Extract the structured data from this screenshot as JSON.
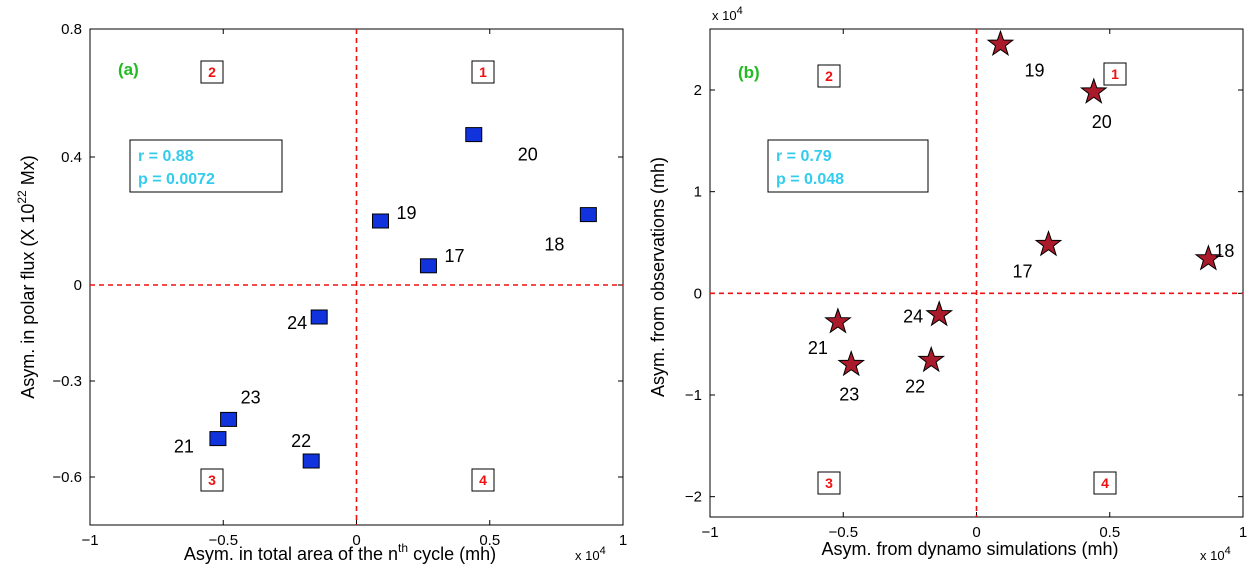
{
  "colors": {
    "tag": "#22bb22",
    "quad": "#ee1111",
    "stat": "#33ccee",
    "zero": "#ee1111",
    "marker_a": "#1133dd",
    "marker_b": "#aa1a2a"
  },
  "chart_data": [
    {
      "type": "scatter",
      "panel_label": "(a)",
      "xlabel": "Asym. in total area of the n",
      "xlabel_sup": "th",
      "xlabel_tail": " cycle (mh)",
      "ylabel": "Asym. in polar flux (X 10",
      "ylabel_sup": "22",
      "ylabel_tail": " Mx)",
      "x_multiplier": "x 10",
      "x_multiplier_exp": "4",
      "xlim": [
        -1,
        1
      ],
      "ylim": [
        -0.75,
        0.8
      ],
      "xticks": [
        -1,
        -0.5,
        0,
        0.5,
        1
      ],
      "xtick_labels": [
        "−1",
        "−0.5",
        "0",
        "0.5",
        "1"
      ],
      "yticks": [
        -0.6,
        -0.3,
        0,
        0.4,
        0.8
      ],
      "ytick_labels": [
        "−0.6",
        "−0.3",
        "0",
        "0.4",
        "0.8"
      ],
      "marker": "square",
      "stats": {
        "r": "r = 0.88",
        "p": "p = 0.0072"
      },
      "quadrants": [
        "1",
        "2",
        "3",
        "4"
      ],
      "points": [
        {
          "label": "17",
          "x": 0.27,
          "y": 0.06
        },
        {
          "label": "18",
          "x": 0.87,
          "y": 0.22
        },
        {
          "label": "19",
          "x": 0.09,
          "y": 0.2
        },
        {
          "label": "20",
          "x": 0.44,
          "y": 0.47
        },
        {
          "label": "21",
          "x": -0.52,
          "y": -0.48
        },
        {
          "label": "22",
          "x": -0.17,
          "y": -0.55
        },
        {
          "label": "23",
          "x": -0.48,
          "y": -0.42
        },
        {
          "label": "24",
          "x": -0.14,
          "y": -0.1
        }
      ]
    },
    {
      "type": "scatter",
      "panel_label": "(b)",
      "xlabel": "Asym. from dynamo simulations (mh)",
      "ylabel": "Asym. from observations (mh)",
      "x_multiplier": "x 10",
      "x_multiplier_exp": "4",
      "y_multiplier": "x 10",
      "y_multiplier_exp": "4",
      "xlim": [
        -1,
        1
      ],
      "ylim": [
        -2.2,
        2.6
      ],
      "xticks": [
        -1,
        -0.5,
        0,
        0.5,
        1
      ],
      "xtick_labels": [
        "−1",
        "−0.5",
        "0",
        "0.5",
        "1"
      ],
      "yticks": [
        -2,
        -1,
        0,
        1,
        2
      ],
      "ytick_labels": [
        "−2",
        "−1",
        "0",
        "1",
        "2"
      ],
      "marker": "star",
      "stats": {
        "r": "r = 0.79",
        "p": "p = 0.048"
      },
      "quadrants": [
        "1",
        "2",
        "3",
        "4"
      ],
      "points": [
        {
          "label": "17",
          "x": 0.27,
          "y": 0.48
        },
        {
          "label": "18",
          "x": 0.87,
          "y": 0.34
        },
        {
          "label": "19",
          "x": 0.09,
          "y": 2.45
        },
        {
          "label": "20",
          "x": 0.44,
          "y": 1.98
        },
        {
          "label": "21",
          "x": -0.52,
          "y": -0.28
        },
        {
          "label": "22",
          "x": -0.17,
          "y": -0.66
        },
        {
          "label": "23",
          "x": -0.47,
          "y": -0.7
        },
        {
          "label": "24",
          "x": -0.14,
          "y": -0.21
        }
      ]
    }
  ]
}
